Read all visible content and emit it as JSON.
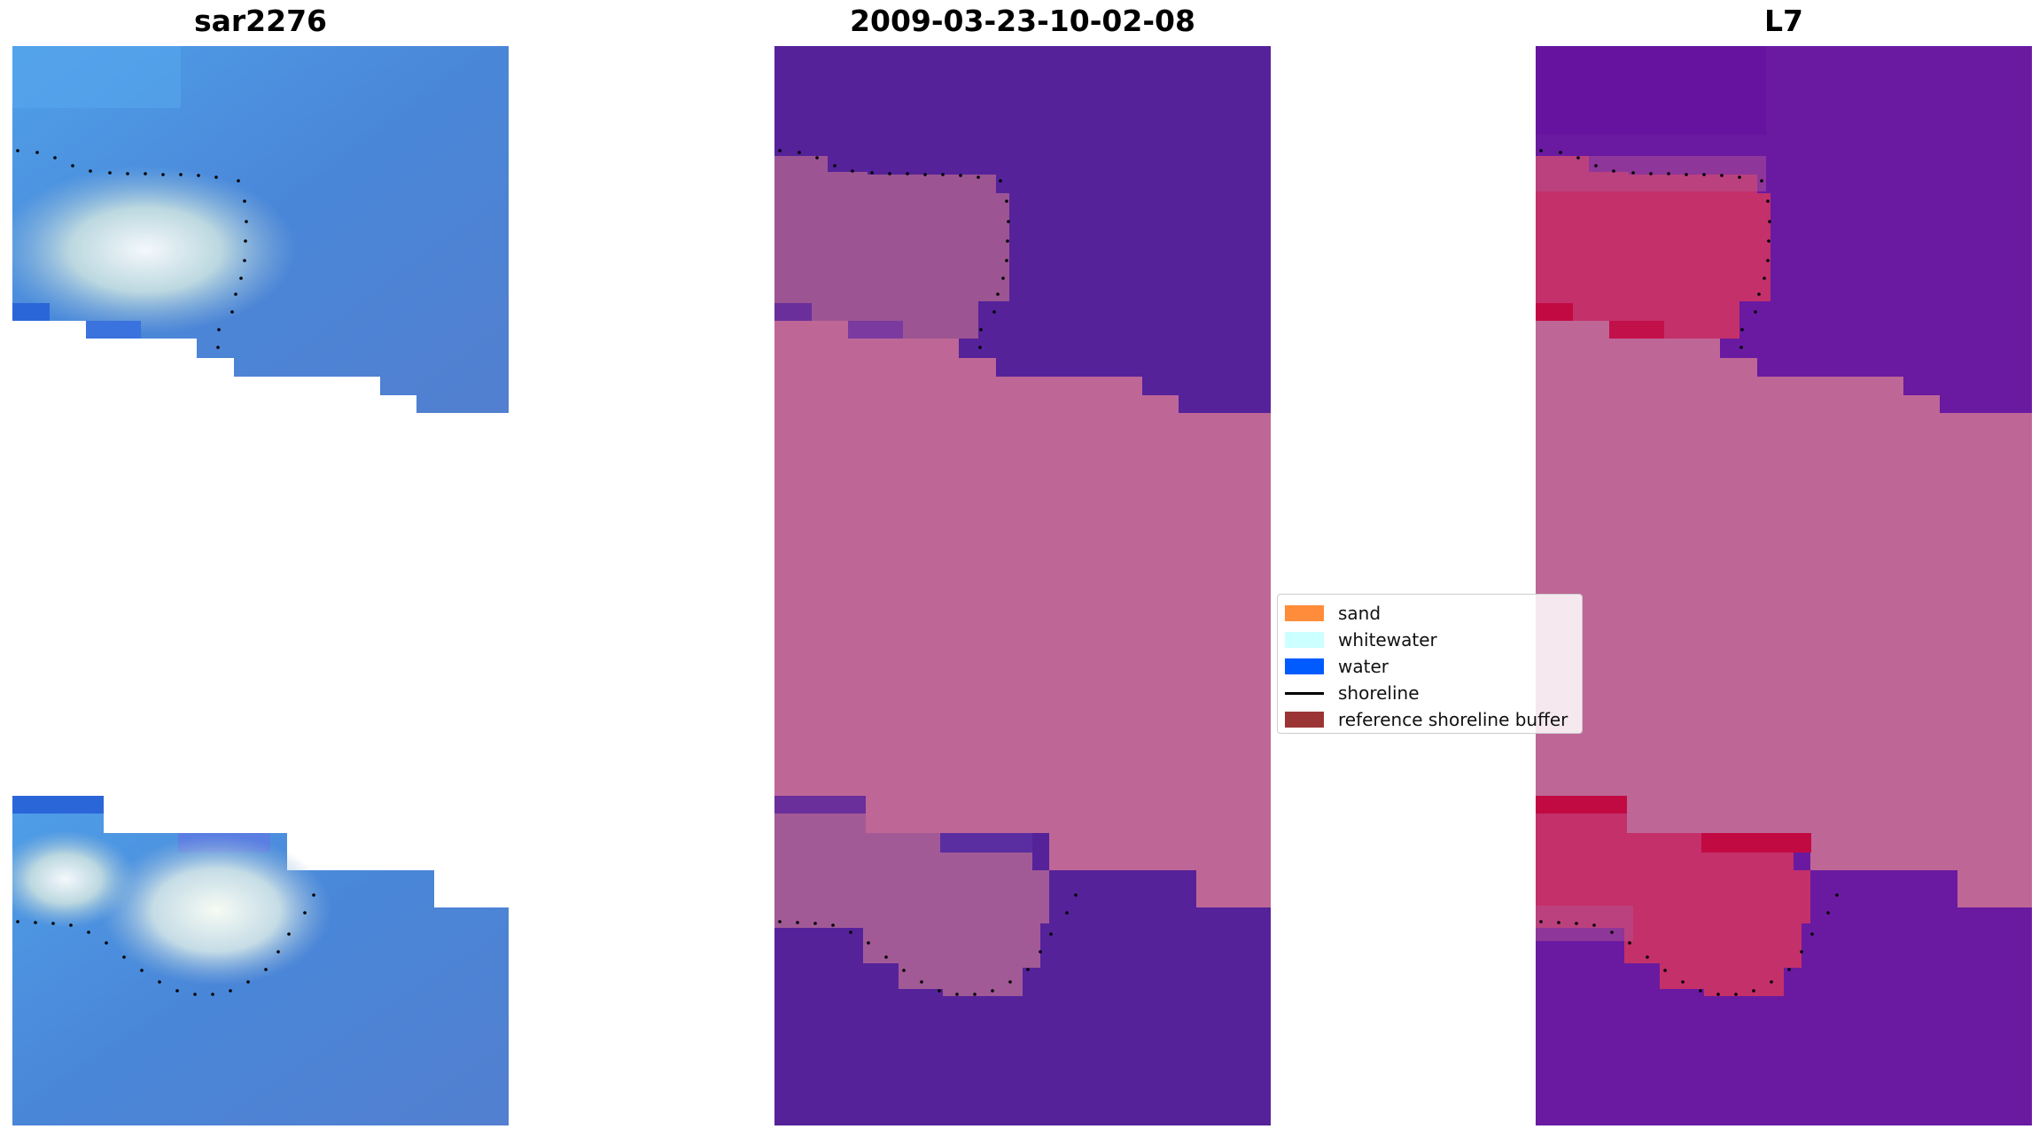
{
  "panels": [
    {
      "title": "sar2276",
      "image": "rgb-satellite-image"
    },
    {
      "title": "2009-03-23-10-02-08",
      "image": "classified-overlay-image"
    },
    {
      "title": "L7",
      "image": "index-overlay-image"
    }
  ],
  "legend": {
    "items": [
      {
        "label": "sand",
        "color": "#ff8c3a",
        "kind": "patch"
      },
      {
        "label": "whitewater",
        "color": "#ccffff",
        "kind": "patch"
      },
      {
        "label": "water",
        "color": "#005bff",
        "kind": "patch"
      },
      {
        "label": "shoreline",
        "color": "#000000",
        "kind": "line"
      },
      {
        "label": "reference shoreline buffer",
        "color": "#9b3535",
        "kind": "patch"
      }
    ]
  },
  "colors": {
    "nodata": "#ffffff",
    "panel2_water": "#55229a",
    "panel2_buffer": "#be6696",
    "panel3_water": "#6a1aa0",
    "panel3_buffer": "#be6696",
    "panel3_sand": "#c42a5c"
  }
}
